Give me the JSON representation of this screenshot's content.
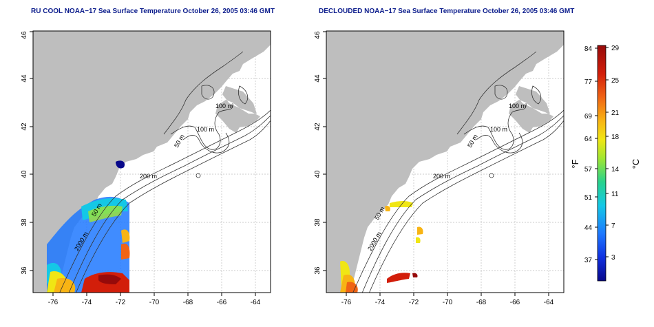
{
  "left_map": {
    "title": "RU COOL NOAA−17 Sea Surface Temperature October 26, 2005 03:46 GMT",
    "lon_ticks": [
      "-76",
      "-74",
      "-72",
      "-70",
      "-68",
      "-66",
      "-64"
    ],
    "lat_ticks": [
      "36",
      "38",
      "40",
      "42",
      "44",
      "46"
    ],
    "contour_labels": [
      "100 m",
      "100 m",
      "50 m",
      "200 m",
      "50 m",
      "2000 m"
    ]
  },
  "right_map": {
    "title": "DECLOUDED NOAA−17 Sea Surface Temperature October 26, 2005 03:46 GMT",
    "lon_ticks": [
      "-76",
      "-74",
      "-72",
      "-70",
      "-68",
      "-66",
      "-64"
    ],
    "lat_ticks": [
      "36",
      "38",
      "40",
      "42",
      "44",
      "46"
    ],
    "contour_labels": [
      "100 m",
      "100 m",
      "50 m",
      "200 m",
      "50 m",
      "2000 m"
    ]
  },
  "colorbar": {
    "f_unit": "°F",
    "c_unit": "°C",
    "f_ticks": [
      "84",
      "77",
      "69",
      "64",
      "57",
      "51",
      "44",
      "37"
    ],
    "c_ticks": [
      "29",
      "25",
      "21",
      "18",
      "14",
      "11",
      "7",
      "3"
    ],
    "colors": [
      "#08088a",
      "#1030e0",
      "#1e78ff",
      "#14c8e6",
      "#28d28c",
      "#a0e632",
      "#f0e614",
      "#f8b414",
      "#f06414",
      "#d21e0a",
      "#960a0a"
    ]
  },
  "style": {
    "land": "#bebebe",
    "water": "#ffffff",
    "contour": "#333333",
    "grid": "#bbbbbb",
    "title_color": "#0b1c8c"
  }
}
